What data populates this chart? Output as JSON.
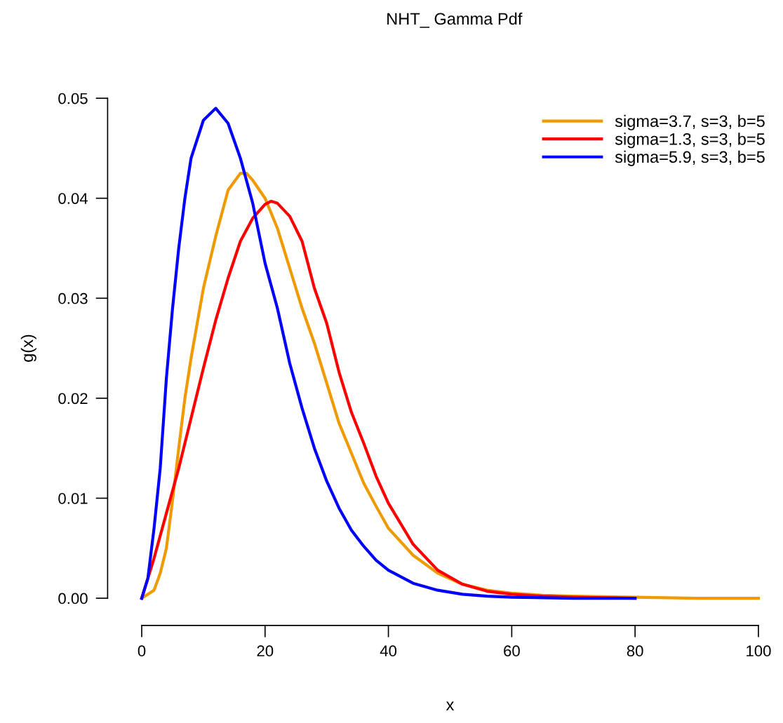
{
  "chart_data": {
    "type": "line",
    "title": "NHT_ Gamma Pdf",
    "xlabel": "x",
    "ylabel": "g(x)",
    "xlim": [
      0,
      100
    ],
    "ylim": [
      0,
      0.05
    ],
    "xticks": [
      0,
      20,
      40,
      60,
      80,
      100
    ],
    "yticks": [
      {
        "value": 0,
        "label": "0.00"
      },
      {
        "value": 0.01,
        "label": "0.01"
      },
      {
        "value": 0.02,
        "label": "0.02"
      },
      {
        "value": 0.03,
        "label": "0.03"
      },
      {
        "value": 0.04,
        "label": "0.04"
      },
      {
        "value": 0.05,
        "label": "0.05"
      }
    ],
    "grid": false,
    "legend": "top right",
    "marker": "none",
    "line_style": "solid",
    "series": [
      {
        "name": "sigma=3.7, s=3, b=5",
        "color": "#ee9a00",
        "x": [
          0,
          2,
          3,
          4,
          5,
          6,
          7,
          8,
          9,
          10,
          12,
          14,
          16,
          17,
          18,
          20,
          22,
          24,
          26,
          28,
          30,
          32,
          34,
          36,
          38,
          40,
          44,
          48,
          52,
          56,
          60,
          65,
          70,
          80,
          90,
          100
        ],
        "values": [
          0,
          0.0008,
          0.0025,
          0.005,
          0.0098,
          0.015,
          0.02,
          0.024,
          0.0275,
          0.031,
          0.0362,
          0.0408,
          0.0425,
          0.0425,
          0.0418,
          0.04,
          0.037,
          0.033,
          0.029,
          0.0255,
          0.0215,
          0.0175,
          0.0145,
          0.0115,
          0.0092,
          0.007,
          0.0043,
          0.0025,
          0.0014,
          0.0008,
          0.0005,
          0.0003,
          0.0002,
          0.0001,
          0,
          0
        ]
      },
      {
        "name": "sigma=1.3, s=3, b=5",
        "color": "#ff0000",
        "x": [
          0,
          1,
          2,
          4,
          6,
          8,
          10,
          12,
          14,
          16,
          18,
          20,
          21,
          22,
          24,
          26,
          28,
          30,
          32,
          34,
          36,
          38,
          40,
          44,
          48,
          52,
          56,
          60,
          65,
          70,
          80
        ],
        "values": [
          0,
          0.002,
          0.004,
          0.0085,
          0.013,
          0.018,
          0.023,
          0.0278,
          0.032,
          0.0357,
          0.038,
          0.0394,
          0.0397,
          0.0395,
          0.0382,
          0.0357,
          0.031,
          0.0275,
          0.0226,
          0.0186,
          0.0155,
          0.0122,
          0.0095,
          0.0054,
          0.0028,
          0.0014,
          0.0007,
          0.0004,
          0.0002,
          0.0001,
          0
        ]
      },
      {
        "name": "sigma=5.9, s=3, b=5",
        "color": "#0000ff",
        "x": [
          0,
          1,
          2,
          3,
          4,
          5,
          6,
          7,
          8,
          10,
          12,
          14,
          16,
          18,
          20,
          22,
          24,
          26,
          28,
          30,
          32,
          34,
          36,
          38,
          40,
          44,
          48,
          52,
          56,
          60,
          70,
          80
        ],
        "values": [
          0,
          0.002,
          0.007,
          0.013,
          0.022,
          0.029,
          0.035,
          0.04,
          0.044,
          0.0478,
          0.049,
          0.0475,
          0.044,
          0.0395,
          0.0335,
          0.029,
          0.0235,
          0.019,
          0.015,
          0.0117,
          0.009,
          0.0068,
          0.0052,
          0.0038,
          0.0028,
          0.0015,
          0.0008,
          0.0004,
          0.0002,
          0.0001,
          0,
          0
        ]
      }
    ]
  }
}
